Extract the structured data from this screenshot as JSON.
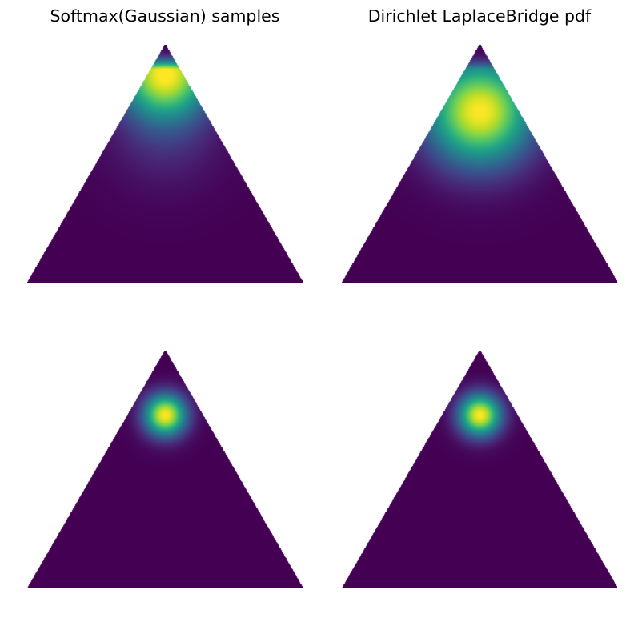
{
  "chart_data": [
    {
      "type": "heatmap",
      "panel": "top-left",
      "title": "Softmax(Gaussian) samples",
      "colormap": "viridis",
      "domain": "2-simplex (ternary)",
      "axes": "off",
      "density_peak": {
        "p_top": 0.88,
        "p_left": 0.06,
        "p_right": 0.06
      },
      "spread": 0.16,
      "tail_toward_base": true
    },
    {
      "type": "heatmap",
      "panel": "top-right",
      "title": "Dirichlet LaplaceBridge pdf",
      "colormap": "viridis",
      "domain": "2-simplex (ternary)",
      "axes": "off",
      "density_peak": {
        "p_top": 0.72,
        "p_left": 0.14,
        "p_right": 0.14
      },
      "spread": 0.19,
      "tail_toward_base": false
    },
    {
      "type": "heatmap",
      "panel": "bottom-left",
      "title": "",
      "colormap": "viridis",
      "domain": "2-simplex (ternary)",
      "axes": "off",
      "density_peak": {
        "p_top": 0.73,
        "p_left": 0.135,
        "p_right": 0.135
      },
      "spread": 0.075,
      "tail_toward_base": false
    },
    {
      "type": "heatmap",
      "panel": "bottom-right",
      "title": "",
      "colormap": "viridis",
      "domain": "2-simplex (ternary)",
      "axes": "off",
      "density_peak": {
        "p_top": 0.73,
        "p_left": 0.135,
        "p_right": 0.135
      },
      "spread": 0.075,
      "tail_toward_base": false
    }
  ]
}
